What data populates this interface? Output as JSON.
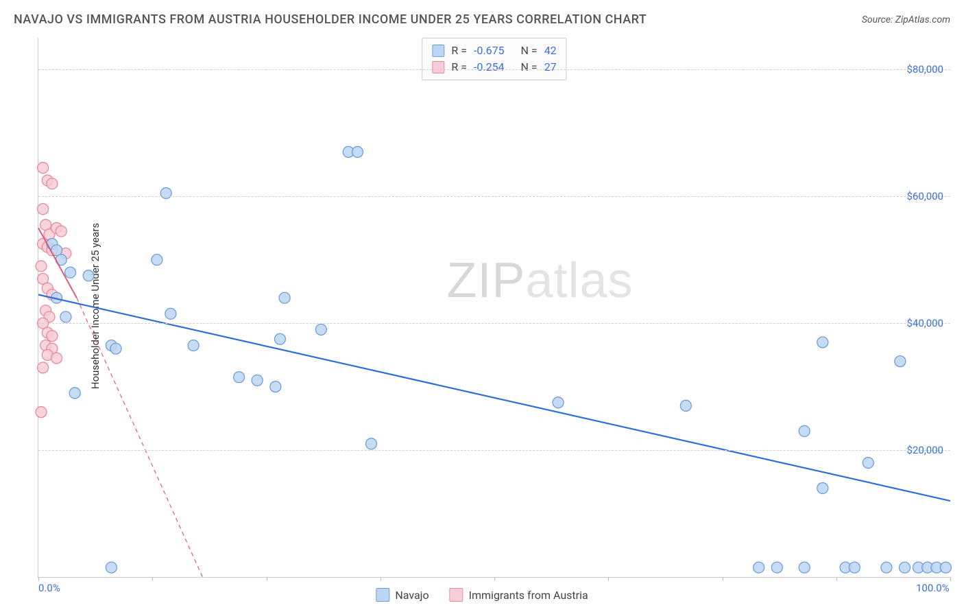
{
  "title": "NAVAJO VS IMMIGRANTS FROM AUSTRIA HOUSEHOLDER INCOME UNDER 25 YEARS CORRELATION CHART",
  "source_prefix": "Source: ",
  "source_name": "ZipAtlas.com",
  "y_axis_label": "Householder Income Under 25 years",
  "watermark_a": "ZIP",
  "watermark_b": "atlas",
  "chart": {
    "type": "scatter",
    "xlim": [
      0,
      100
    ],
    "ylim": [
      0,
      85000
    ],
    "y_ticks": [
      20000,
      40000,
      60000,
      80000
    ],
    "y_tick_labels": [
      "$20,000",
      "$40,000",
      "$60,000",
      "$80,000"
    ],
    "x_ticks": [
      0,
      12.5,
      25,
      37.5,
      50,
      62.5,
      75,
      87.5,
      100
    ],
    "x_tick_labels": {
      "0": "0.0%",
      "100": "100.0%"
    },
    "grid_color": "#d0d0d0",
    "background_color": "#ffffff",
    "axis_color": "#cccccc",
    "label_fontsize": 15,
    "tick_label_color": "#3b6fd8",
    "marker_radius": 8,
    "marker_stroke_width": 1.3,
    "series": {
      "navajo": {
        "label": "Navajo",
        "fill": "#bcd5f2",
        "stroke": "#6f9ed9",
        "line_color": "#2e6fd6",
        "line_width": 2.2,
        "R": "-0.675",
        "N": "42",
        "trend": {
          "x1": 0,
          "y1": 44500,
          "x2": 100,
          "y2": 12000
        },
        "points": [
          [
            1.5,
            52500
          ],
          [
            2.0,
            51500
          ],
          [
            2.5,
            50000
          ],
          [
            2.0,
            44000
          ],
          [
            3.5,
            48000
          ],
          [
            5.5,
            47500
          ],
          [
            3.0,
            41000
          ],
          [
            4.0,
            29000
          ],
          [
            8.0,
            36500
          ],
          [
            8.5,
            36000
          ],
          [
            8.0,
            1500
          ],
          [
            14.0,
            60500
          ],
          [
            13.0,
            50000
          ],
          [
            14.5,
            41500
          ],
          [
            17.0,
            36500
          ],
          [
            22.0,
            31500
          ],
          [
            24.0,
            31000
          ],
          [
            26.0,
            30000
          ],
          [
            27.0,
            44000
          ],
          [
            26.5,
            37500
          ],
          [
            31.0,
            39000
          ],
          [
            34.0,
            67000
          ],
          [
            35.0,
            67000
          ],
          [
            36.5,
            21000
          ],
          [
            57.0,
            27500
          ],
          [
            71.0,
            27000
          ],
          [
            79.0,
            1500
          ],
          [
            81.0,
            1500
          ],
          [
            84.0,
            23000
          ],
          [
            84.0,
            1500
          ],
          [
            86.0,
            37000
          ],
          [
            86.0,
            14000
          ],
          [
            88.5,
            1500
          ],
          [
            89.5,
            1500
          ],
          [
            91.0,
            18000
          ],
          [
            93.0,
            1500
          ],
          [
            94.5,
            34000
          ],
          [
            95.0,
            1500
          ],
          [
            96.5,
            1500
          ],
          [
            97.5,
            1500
          ],
          [
            98.5,
            1500
          ],
          [
            99.5,
            1500
          ]
        ]
      },
      "austria": {
        "label": "Immigrants from Austria",
        "fill": "#f7cdd7",
        "stroke": "#e68aa1",
        "line_color": "#e05a7a",
        "line_width": 2.0,
        "line_dash": "6,5",
        "R": "-0.254",
        "N": "27",
        "trend": {
          "x1": 0,
          "y1": 55000,
          "x2": 4.2,
          "y2": 44000,
          "x3": 18,
          "y3": 0
        },
        "points": [
          [
            0.5,
            64500
          ],
          [
            1.0,
            62500
          ],
          [
            1.5,
            62000
          ],
          [
            0.5,
            58000
          ],
          [
            0.8,
            55500
          ],
          [
            1.2,
            54000
          ],
          [
            0.5,
            52500
          ],
          [
            1.0,
            52000
          ],
          [
            1.5,
            51500
          ],
          [
            2.0,
            55000
          ],
          [
            2.5,
            54500
          ],
          [
            0.3,
            49000
          ],
          [
            0.5,
            47000
          ],
          [
            1.0,
            45500
          ],
          [
            1.5,
            44500
          ],
          [
            0.8,
            42000
          ],
          [
            1.2,
            41000
          ],
          [
            0.5,
            40000
          ],
          [
            1.0,
            38500
          ],
          [
            1.5,
            38000
          ],
          [
            0.8,
            36500
          ],
          [
            1.5,
            36000
          ],
          [
            1.0,
            35000
          ],
          [
            2.0,
            34500
          ],
          [
            0.5,
            33000
          ],
          [
            0.3,
            26000
          ],
          [
            3.0,
            51000
          ]
        ]
      }
    }
  },
  "legend_top": {
    "r_label": "R =",
    "n_label": "N ="
  }
}
